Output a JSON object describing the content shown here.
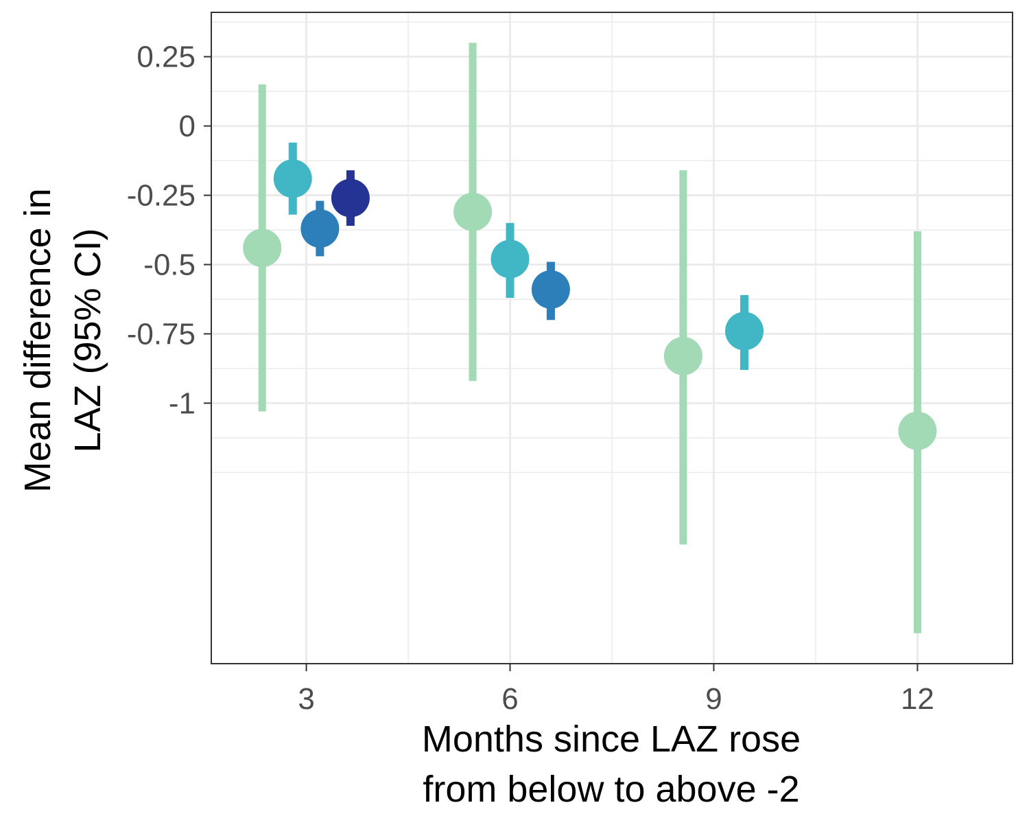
{
  "chart_data": {
    "type": "scatter",
    "title": "",
    "xlabel": [
      "Months since LAZ rose",
      "from below to above -2"
    ],
    "ylabel": [
      "Mean difference in",
      "LAZ (95% CI)"
    ],
    "xlim": [
      1.6,
      13.4
    ],
    "ylim": [
      -1.94,
      0.41
    ],
    "x_ticks": [
      3,
      6,
      9,
      12
    ],
    "x_tick_labels": [
      "3",
      "6",
      "9",
      "12"
    ],
    "y_ticks": [
      0.25,
      0,
      -0.25,
      -0.5,
      -0.75,
      -1
    ],
    "y_tick_labels": [
      "0.25",
      "0",
      "-0.25",
      "-0.5",
      "-0.75",
      "-1"
    ],
    "grid": true,
    "legend": "none",
    "series": [
      {
        "color": "#A1DAB4",
        "points": [
          {
            "x": 2.35,
            "y": -0.44,
            "lower": -1.03,
            "upper": 0.15
          },
          {
            "x": 5.45,
            "y": -0.31,
            "lower": -0.92,
            "upper": 0.3
          },
          {
            "x": 8.55,
            "y": -0.83,
            "lower": -1.51,
            "upper": -0.16
          },
          {
            "x": 12.0,
            "y": -1.1,
            "lower": -1.83,
            "upper": -0.38
          }
        ]
      },
      {
        "color": "#41B6C4",
        "points": [
          {
            "x": 2.8,
            "y": -0.19,
            "lower": -0.32,
            "upper": -0.06
          },
          {
            "x": 6.0,
            "y": -0.48,
            "lower": -0.62,
            "upper": -0.35
          },
          {
            "x": 9.45,
            "y": -0.74,
            "lower": -0.88,
            "upper": -0.61
          }
        ]
      },
      {
        "color": "#2C7FB8",
        "points": [
          {
            "x": 3.2,
            "y": -0.37,
            "lower": -0.47,
            "upper": -0.27
          },
          {
            "x": 6.6,
            "y": -0.59,
            "lower": -0.7,
            "upper": -0.49
          }
        ]
      },
      {
        "color": "#253494",
        "points": [
          {
            "x": 3.65,
            "y": -0.26,
            "lower": -0.36,
            "upper": -0.16
          }
        ]
      }
    ]
  }
}
